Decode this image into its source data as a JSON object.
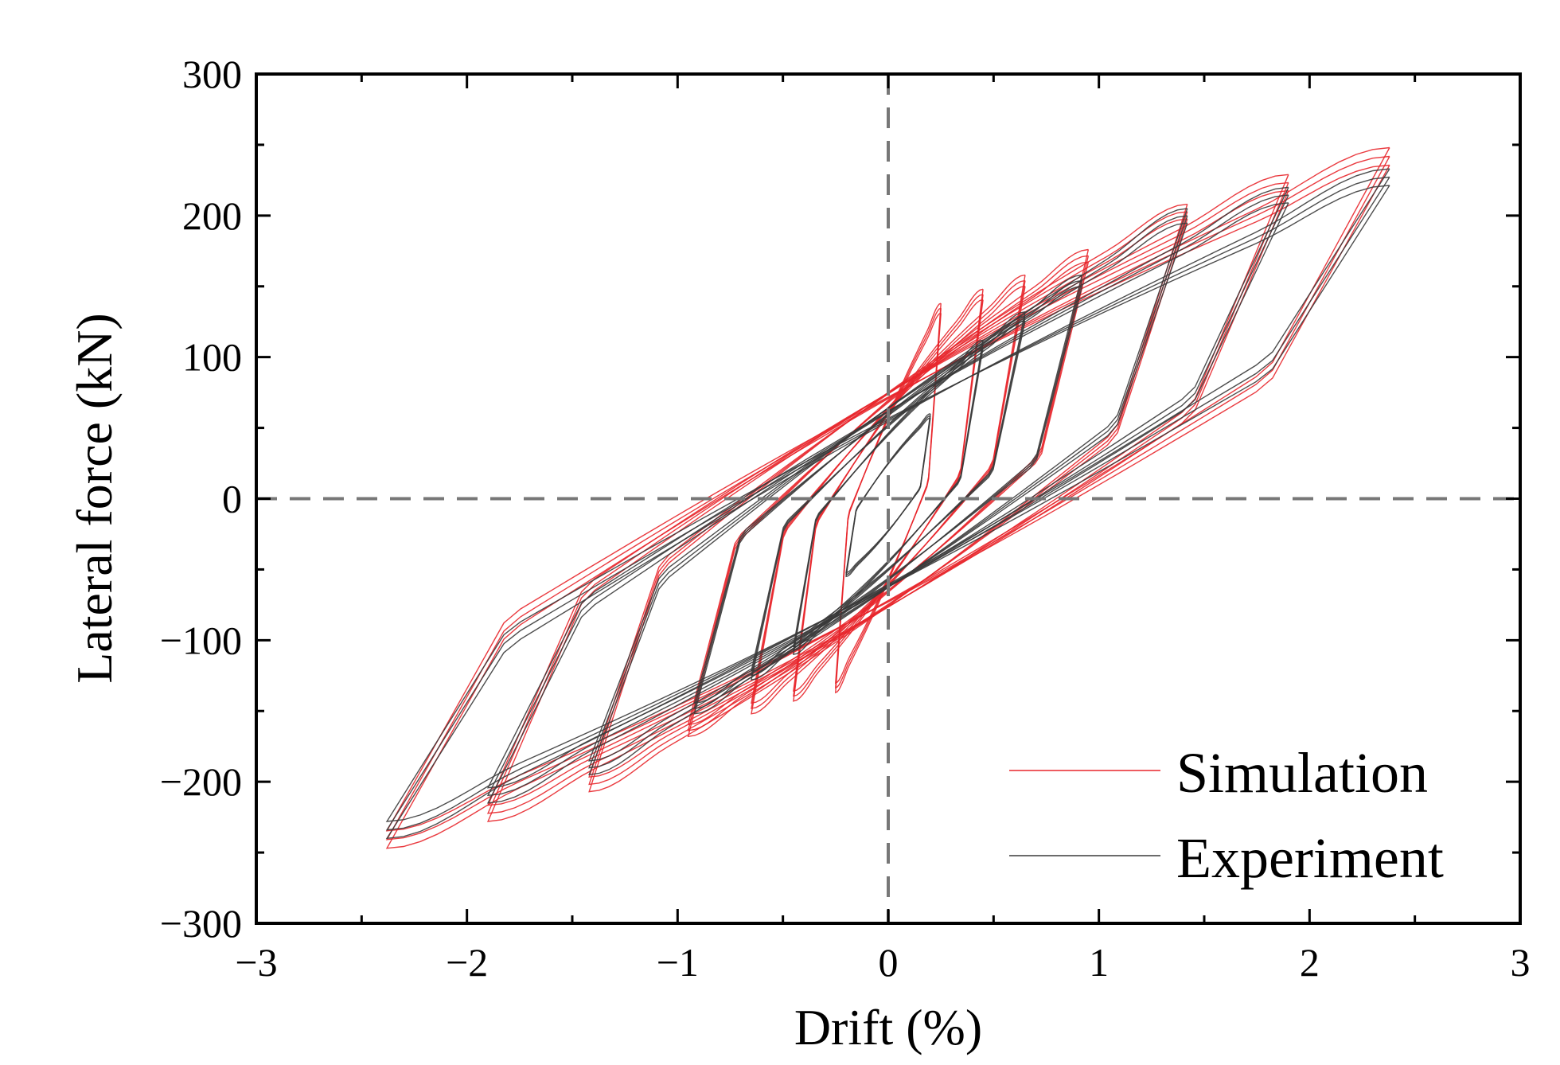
{
  "chart_data": {
    "type": "line",
    "title": "",
    "xlabel": "Drift (%)",
    "ylabel": "Lateral force (kN)",
    "xlim": [
      -3,
      3
    ],
    "ylim": [
      -300,
      300
    ],
    "xticks": [
      -3,
      -2,
      -1,
      0,
      1,
      2,
      3
    ],
    "xtick_labels": [
      "−3",
      "−2",
      "−1",
      "0",
      "1",
      "2",
      "3"
    ],
    "yticks": [
      -300,
      -200,
      -100,
      0,
      100,
      200,
      300
    ],
    "ytick_labels": [
      "−300",
      "−200",
      "−100",
      "0",
      "100",
      "200",
      "300"
    ],
    "grid": false,
    "legend_position": "bottom-right",
    "reference_lines": {
      "x": 0,
      "y": 0,
      "style": "dashed",
      "color": "#777777"
    },
    "series": [
      {
        "name": "Simulation",
        "color": "#e8262b",
        "cycles": [
          {
            "peak_drift": 0.25,
            "peak_pos": 138,
            "peak_neg": -137,
            "unload_pos": 12,
            "unload_neg": -12,
            "pinch": 6
          },
          {
            "peak_drift": 0.45,
            "peak_pos": 148,
            "peak_neg": -143,
            "unload_pos": 18,
            "unload_neg": -18,
            "pinch": 8
          },
          {
            "peak_drift": 0.65,
            "peak_pos": 158,
            "peak_neg": -152,
            "unload_pos": 24,
            "unload_neg": -24,
            "pinch": 10
          },
          {
            "peak_drift": 0.95,
            "peak_pos": 176,
            "peak_neg": -168,
            "unload_pos": 32,
            "unload_neg": -32,
            "pinch": 12
          },
          {
            "peak_drift": 1.42,
            "peak_pos": 208,
            "peak_neg": -207,
            "unload_pos": 48,
            "unload_neg": -50,
            "pinch": 14
          },
          {
            "peak_drift": 1.9,
            "peak_pos": 229,
            "peak_neg": -228,
            "unload_pos": 66,
            "unload_neg": -70,
            "pinch": 16
          },
          {
            "peak_drift": 2.38,
            "peak_pos": 248,
            "peak_neg": -247,
            "unload_pos": 92,
            "unload_neg": -95,
            "pinch": 18
          }
        ]
      },
      {
        "name": "Experiment",
        "color": "#3a3a3a",
        "cycles": [
          {
            "peak_drift": 0.2,
            "peak_pos": 60,
            "peak_neg": -55,
            "unload_pos": 8,
            "unload_neg": -8,
            "pinch": 4
          },
          {
            "peak_drift": 0.45,
            "peak_pos": 112,
            "peak_neg": -110,
            "unload_pos": 14,
            "unload_neg": -14,
            "pinch": 6
          },
          {
            "peak_drift": 0.65,
            "peak_pos": 132,
            "peak_neg": -128,
            "unload_pos": 20,
            "unload_neg": -20,
            "pinch": 7
          },
          {
            "peak_drift": 0.92,
            "peak_pos": 158,
            "peak_neg": -152,
            "unload_pos": 28,
            "unload_neg": -28,
            "pinch": 8
          },
          {
            "peak_drift": 1.42,
            "peak_pos": 205,
            "peak_neg": -195,
            "unload_pos": 55,
            "unload_neg": -60,
            "pinch": 10
          },
          {
            "peak_drift": 1.9,
            "peak_pos": 220,
            "peak_neg": -215,
            "unload_pos": 75,
            "unload_neg": -80,
            "pinch": 12
          },
          {
            "peak_drift": 2.38,
            "peak_pos": 233,
            "peak_neg": -240,
            "unload_pos": 100,
            "unload_neg": -105,
            "pinch": 14
          }
        ]
      }
    ]
  }
}
